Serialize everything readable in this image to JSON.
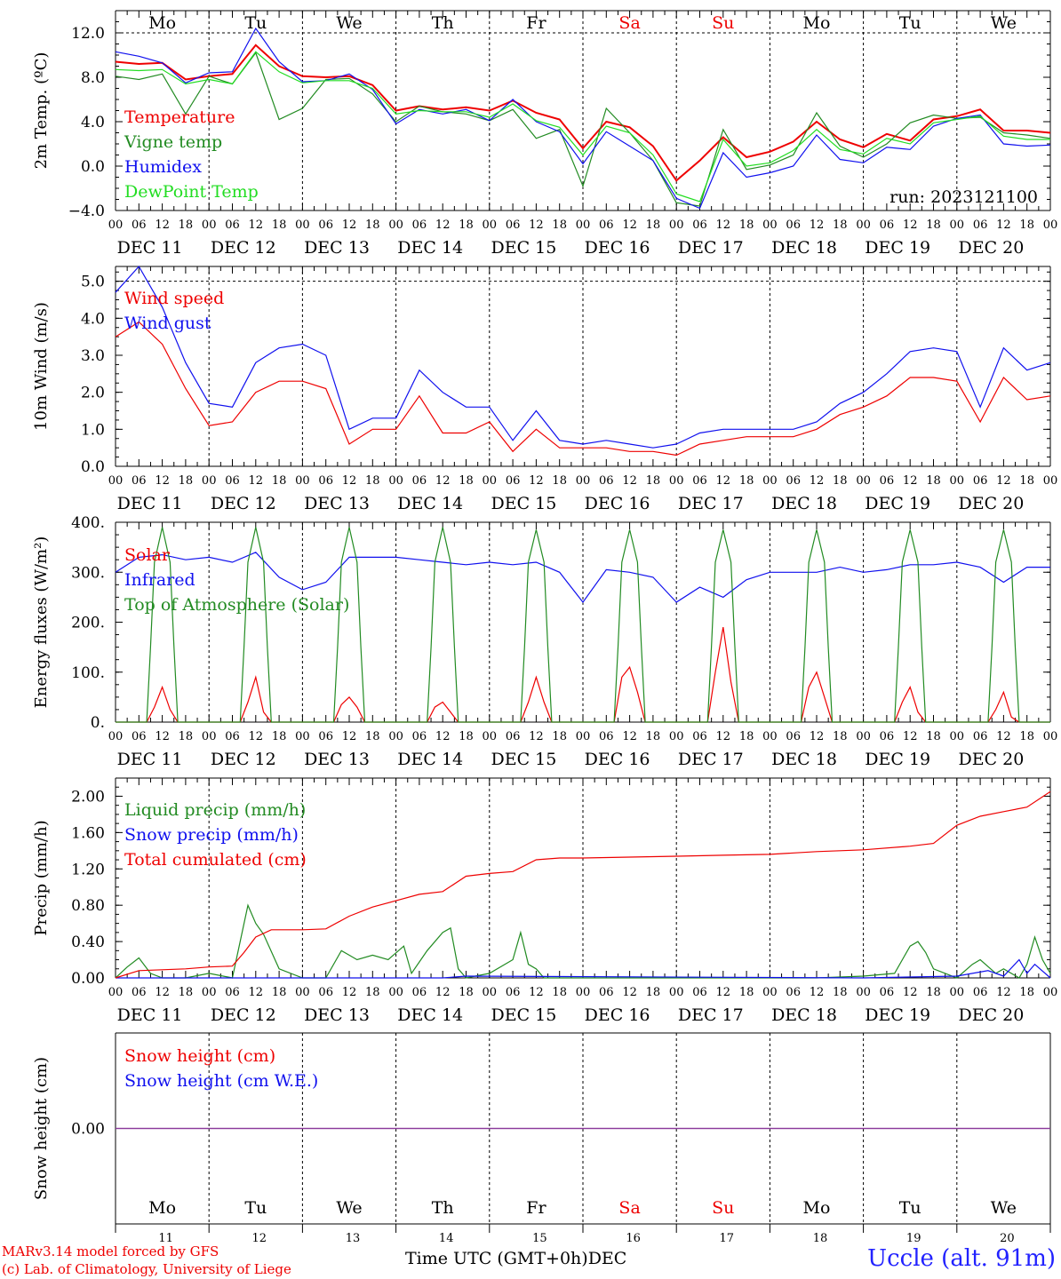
{
  "run_label": "run: 2023121100",
  "place": "Uccle (alt. 91m)",
  "model_line": "MARv3.14 model forced by GFS",
  "credit_line": "(c) Lab. of Climatology, University of Liege",
  "bottom_axis_label": "Time UTC (GMT+0h)",
  "month_label": "DEC",
  "hour_ticks": [
    "00",
    "06",
    "12",
    "18"
  ],
  "days": [
    {
      "weekday": "Mo",
      "num": "11",
      "date": "DEC 11",
      "weekend": false
    },
    {
      "weekday": "Tu",
      "num": "12",
      "date": "DEC 12",
      "weekend": false
    },
    {
      "weekday": "We",
      "num": "13",
      "date": "DEC 13",
      "weekend": false
    },
    {
      "weekday": "Th",
      "num": "14",
      "date": "DEC 14",
      "weekend": false
    },
    {
      "weekday": "Fr",
      "num": "15",
      "date": "DEC 15",
      "weekend": false
    },
    {
      "weekday": "Sa",
      "num": "16",
      "date": "DEC 16",
      "weekend": true
    },
    {
      "weekday": "Su",
      "num": "17",
      "date": "DEC 17",
      "weekend": true
    },
    {
      "weekday": "Mo",
      "num": "18",
      "date": "DEC 18",
      "weekend": false
    },
    {
      "weekday": "Tu",
      "num": "19",
      "date": "DEC 19",
      "weekend": false
    },
    {
      "weekday": "We",
      "num": "20",
      "date": "DEC 20",
      "weekend": false
    }
  ],
  "colors": {
    "red": "#ee0000",
    "green": "#228b22",
    "blue": "#1010ee",
    "lightgreen": "#22dd22",
    "purple": "#8b3a9b",
    "weekend": "#ee0000"
  },
  "chart_data": [
    {
      "type": "line",
      "ylabel": "2m Temp. (ºC)",
      "ylim": [
        -4,
        14
      ],
      "yticks": [
        -4,
        0,
        4,
        8,
        12
      ],
      "ytick_labels": [
        "−4.0",
        "0.0",
        "4.0",
        "8.0",
        "12.0"
      ],
      "dashed_hline": 12,
      "x_unit": "hours since Dec 11 00 UTC",
      "x": [
        0,
        6,
        12,
        18,
        24,
        30,
        36,
        42,
        48,
        54,
        60,
        66,
        72,
        78,
        84,
        90,
        96,
        102,
        108,
        114,
        120,
        126,
        132,
        138,
        144,
        150,
        156,
        162,
        168,
        174,
        180,
        186,
        192,
        198,
        204,
        210,
        216,
        222,
        228,
        234,
        240
      ],
      "series": [
        {
          "name": "Temperature",
          "color": "red",
          "values": [
            9.4,
            9.2,
            9.3,
            7.8,
            8.1,
            8.3,
            10.9,
            9.0,
            8.1,
            8.0,
            8.1,
            7.3,
            5.0,
            5.4,
            5.1,
            5.3,
            5.0,
            5.9,
            4.8,
            4.2,
            1.6,
            4.0,
            3.5,
            1.8,
            -1.3,
            0.5,
            2.6,
            0.8,
            1.3,
            2.2,
            4.0,
            2.4,
            1.7,
            2.9,
            2.3,
            4.2,
            4.5,
            5.1,
            3.2,
            3.2,
            3.0
          ]
        },
        {
          "name": "Vigne temp",
          "color": "green",
          "values": [
            8.1,
            7.8,
            8.3,
            4.7,
            8.1,
            7.4,
            10.2,
            4.2,
            5.2,
            7.8,
            7.9,
            6.5,
            4.0,
            5.4,
            4.9,
            4.7,
            4.1,
            5.1,
            2.5,
            3.3,
            -1.8,
            5.2,
            3.0,
            0.5,
            -3.3,
            -3.6,
            3.3,
            -0.3,
            0.1,
            1.0,
            4.8,
            1.8,
            0.8,
            2.0,
            3.9,
            4.6,
            4.3,
            4.4,
            3.0,
            2.8,
            2.5
          ]
        },
        {
          "name": "Humidex",
          "color": "blue",
          "values": [
            10.3,
            9.9,
            9.3,
            7.5,
            8.4,
            8.5,
            12.4,
            9.4,
            7.6,
            7.7,
            8.3,
            6.9,
            3.8,
            5.1,
            4.7,
            5.1,
            4.1,
            6.0,
            4.0,
            3.1,
            0.2,
            3.1,
            1.8,
            0.5,
            -2.9,
            -3.8,
            1.2,
            -1.0,
            -0.6,
            0.0,
            2.8,
            0.6,
            0.3,
            1.7,
            1.5,
            3.6,
            4.3,
            4.6,
            2.0,
            1.8,
            1.9
          ]
        },
        {
          "name": "DewPoint Temp",
          "color": "lightgreen",
          "values": [
            8.7,
            8.6,
            8.7,
            7.4,
            7.8,
            7.4,
            10.3,
            8.5,
            7.5,
            7.7,
            7.7,
            7.0,
            4.7,
            5.0,
            4.9,
            4.9,
            4.4,
            5.6,
            4.1,
            3.5,
            1.0,
            3.6,
            3.0,
            1.0,
            -2.5,
            -3.2,
            2.4,
            0.0,
            0.3,
            1.4,
            3.3,
            1.5,
            1.1,
            2.5,
            2.0,
            3.9,
            4.2,
            4.5,
            2.7,
            2.4,
            2.4
          ]
        }
      ]
    },
    {
      "type": "line",
      "ylabel": "10m Wind (m/s)",
      "ylim": [
        0,
        5.4
      ],
      "yticks": [
        0,
        1,
        2,
        3,
        4,
        5
      ],
      "ytick_labels": [
        "0.0",
        "1.0",
        "2.0",
        "3.0",
        "4.0",
        "5.0"
      ],
      "dashed_hline": 5,
      "x_unit": "hours since Dec 11 00 UTC",
      "x": [
        0,
        6,
        12,
        18,
        24,
        30,
        36,
        42,
        48,
        54,
        60,
        66,
        72,
        78,
        84,
        90,
        96,
        102,
        108,
        114,
        120,
        126,
        132,
        138,
        144,
        150,
        156,
        162,
        168,
        174,
        180,
        186,
        192,
        198,
        204,
        210,
        216,
        222,
        228,
        234,
        240
      ],
      "series": [
        {
          "name": "Wind speed",
          "color": "red",
          "values": [
            3.5,
            3.9,
            3.3,
            2.1,
            1.1,
            1.2,
            2.0,
            2.3,
            2.3,
            2.1,
            0.6,
            1.0,
            1.0,
            1.9,
            0.9,
            0.9,
            1.2,
            0.4,
            1.0,
            0.5,
            0.5,
            0.5,
            0.4,
            0.4,
            0.3,
            0.6,
            0.7,
            0.8,
            0.8,
            0.8,
            1.0,
            1.4,
            1.6,
            1.9,
            2.4,
            2.4,
            2.3,
            1.2,
            2.4,
            1.8,
            1.9
          ]
        },
        {
          "name": "Wind gust",
          "color": "blue",
          "values": [
            4.7,
            5.4,
            4.3,
            2.8,
            1.7,
            1.6,
            2.8,
            3.2,
            3.3,
            3.0,
            1.0,
            1.3,
            1.3,
            2.6,
            2.0,
            1.6,
            1.6,
            0.7,
            1.5,
            0.7,
            0.6,
            0.7,
            0.6,
            0.5,
            0.6,
            0.9,
            1.0,
            1.0,
            1.0,
            1.0,
            1.2,
            1.7,
            2.0,
            2.5,
            3.1,
            3.2,
            3.1,
            1.6,
            3.2,
            2.6,
            2.8
          ]
        }
      ]
    },
    {
      "type": "line",
      "ylabel": "Energy fluxes (W/m²)",
      "ylim": [
        0,
        400
      ],
      "yticks": [
        0,
        100,
        200,
        300,
        400
      ],
      "ytick_labels": [
        "0.",
        "100.",
        "200.",
        "300.",
        "400."
      ],
      "x_unit": "hours since Dec 11 00 UTC",
      "series": [
        {
          "name": "Solar",
          "color": "red",
          "x": [
            0,
            8,
            10,
            12,
            14,
            16,
            24,
            32,
            34,
            36,
            38,
            40,
            48,
            56,
            58,
            60,
            62,
            64,
            72,
            80,
            82,
            84,
            86,
            88,
            96,
            104,
            106,
            108,
            110,
            112,
            120,
            128,
            130,
            132,
            134,
            136,
            144,
            152,
            154,
            156,
            158,
            160,
            168,
            176,
            178,
            180,
            182,
            184,
            192,
            200,
            202,
            204,
            206,
            208,
            216,
            224,
            226,
            228,
            230,
            232,
            240
          ],
          "values": [
            0,
            0,
            30,
            70,
            25,
            0,
            0,
            0,
            40,
            90,
            20,
            0,
            0,
            0,
            35,
            50,
            30,
            0,
            0,
            0,
            30,
            40,
            20,
            0,
            0,
            0,
            40,
            90,
            40,
            0,
            0,
            0,
            90,
            110,
            60,
            0,
            0,
            0,
            100,
            190,
            80,
            0,
            0,
            0,
            70,
            100,
            50,
            0,
            0,
            0,
            40,
            70,
            20,
            0,
            0,
            0,
            25,
            60,
            10,
            0,
            0
          ]
        },
        {
          "name": "Infrared",
          "color": "blue",
          "x": [
            0,
            6,
            12,
            18,
            24,
            30,
            36,
            42,
            48,
            54,
            60,
            66,
            72,
            78,
            84,
            90,
            96,
            102,
            108,
            114,
            120,
            126,
            132,
            138,
            144,
            150,
            156,
            162,
            168,
            174,
            180,
            186,
            192,
            198,
            204,
            210,
            216,
            222,
            228,
            234,
            240
          ],
          "values": [
            300,
            330,
            335,
            325,
            330,
            320,
            340,
            290,
            265,
            280,
            330,
            330,
            330,
            325,
            320,
            315,
            320,
            315,
            320,
            300,
            240,
            305,
            300,
            290,
            240,
            270,
            250,
            285,
            300,
            300,
            300,
            310,
            300,
            305,
            315,
            315,
            320,
            310,
            280,
            310,
            310
          ]
        },
        {
          "name": "Top of Atmosphere (Solar)",
          "color": "green",
          "x": [
            0,
            8,
            9,
            10,
            12,
            14,
            15,
            16,
            24,
            32,
            33,
            34,
            36,
            38,
            39,
            40,
            48,
            56,
            57,
            58,
            60,
            62,
            63,
            64,
            72,
            80,
            81,
            82,
            84,
            86,
            87,
            88,
            96,
            104,
            105,
            106,
            108,
            110,
            111,
            112,
            120,
            128,
            129,
            130,
            132,
            134,
            135,
            136,
            144,
            152,
            153,
            154,
            156,
            158,
            159,
            160,
            168,
            176,
            177,
            178,
            180,
            182,
            183,
            184,
            192,
            200,
            201,
            202,
            204,
            206,
            207,
            208,
            216,
            224,
            225,
            226,
            228,
            230,
            231,
            232,
            240
          ],
          "values": [
            0,
            0,
            150,
            320,
            390,
            320,
            150,
            0,
            0,
            0,
            150,
            320,
            390,
            320,
            150,
            0,
            0,
            0,
            150,
            320,
            390,
            320,
            150,
            0,
            0,
            0,
            150,
            320,
            390,
            320,
            150,
            0,
            0,
            0,
            150,
            320,
            385,
            320,
            150,
            0,
            0,
            0,
            150,
            320,
            385,
            320,
            150,
            0,
            0,
            0,
            150,
            320,
            385,
            320,
            150,
            0,
            0,
            0,
            150,
            320,
            385,
            320,
            150,
            0,
            0,
            0,
            150,
            320,
            385,
            320,
            150,
            0,
            0,
            0,
            150,
            320,
            385,
            320,
            150,
            0,
            0
          ]
        }
      ]
    },
    {
      "type": "line",
      "ylabel": "Precip (mm/h)",
      "ylim": [
        0,
        2.2
      ],
      "yticks": [
        0,
        0.4,
        0.8,
        1.2,
        1.6,
        2.0
      ],
      "ytick_labels": [
        "0.00",
        "0.40",
        "0.80",
        "1.20",
        "1.60",
        "2.00"
      ],
      "x_unit": "hours since Dec 11 00 UTC",
      "series": [
        {
          "name": "Liquid precip (mm/h)",
          "color": "green",
          "x": [
            0,
            3,
            6,
            9,
            12,
            18,
            24,
            30,
            34,
            36,
            38,
            42,
            48,
            54,
            58,
            60,
            62,
            66,
            70,
            74,
            76,
            80,
            84,
            86,
            88,
            90,
            96,
            102,
            104,
            106,
            108,
            110,
            114,
            120,
            180,
            192,
            200,
            204,
            206,
            208,
            210,
            216,
            220,
            222,
            226,
            228,
            232,
            234,
            236,
            238,
            240
          ],
          "values": [
            0,
            0.12,
            0.22,
            0.05,
            0,
            0,
            0.05,
            0,
            0.8,
            0.6,
            0.48,
            0.1,
            0,
            0,
            0.3,
            0.25,
            0.2,
            0.25,
            0.2,
            0.35,
            0.05,
            0.3,
            0.5,
            0.55,
            0.1,
            0,
            0.05,
            0.2,
            0.5,
            0.15,
            0.1,
            0,
            0,
            0,
            0,
            0.02,
            0.05,
            0.35,
            0.4,
            0.28,
            0.1,
            0,
            0.15,
            0.2,
            0.05,
            0.1,
            0,
            0.15,
            0.45,
            0.2,
            0.05
          ]
        },
        {
          "name": "Snow precip (mm/h)",
          "color": "blue",
          "x": [
            0,
            84,
            90,
            192,
            216,
            224,
            228,
            232,
            234,
            236,
            240
          ],
          "values": [
            0,
            0,
            0.02,
            0,
            0.02,
            0.08,
            0.02,
            0.2,
            0.05,
            0.15,
            0
          ]
        },
        {
          "name": "Total cumulated (cm)",
          "color": "red",
          "x": [
            0,
            6,
            12,
            18,
            24,
            30,
            33,
            36,
            40,
            48,
            54,
            60,
            66,
            72,
            78,
            84,
            90,
            96,
            102,
            108,
            114,
            120,
            132,
            144,
            156,
            168,
            180,
            192,
            204,
            210,
            216,
            222,
            228,
            234,
            240
          ],
          "values": [
            0.0,
            0.08,
            0.09,
            0.1,
            0.12,
            0.13,
            0.28,
            0.45,
            0.53,
            0.53,
            0.54,
            0.68,
            0.78,
            0.85,
            0.92,
            0.95,
            1.12,
            1.15,
            1.17,
            1.3,
            1.32,
            1.32,
            1.33,
            1.34,
            1.35,
            1.36,
            1.39,
            1.41,
            1.45,
            1.48,
            1.68,
            1.78,
            1.83,
            1.88,
            2.05
          ]
        }
      ]
    },
    {
      "type": "line",
      "ylabel": "Snow height (cm)",
      "ylim": [
        -0.1,
        0.1
      ],
      "yticks": [
        0
      ],
      "ytick_labels": [
        "0.00"
      ],
      "x_unit": "hours since Dec 11 00 UTC",
      "x": [
        0,
        240
      ],
      "series": [
        {
          "name": "Snow height (cm)",
          "color": "red",
          "values": [
            0,
            0
          ]
        },
        {
          "name": "Snow height (cm W.E.)",
          "color": "blue",
          "values": [
            0,
            0
          ]
        }
      ]
    }
  ]
}
